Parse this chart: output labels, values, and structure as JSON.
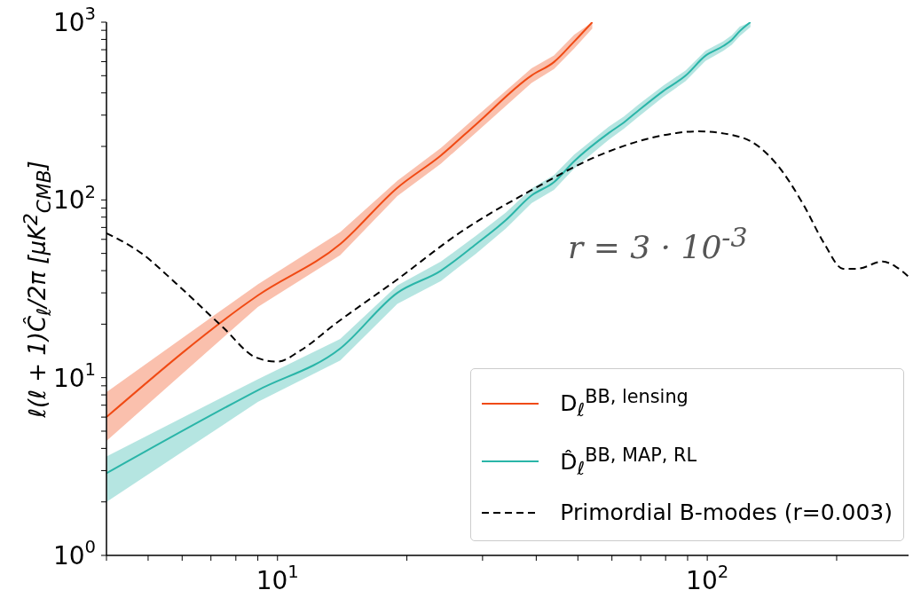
{
  "chart_data": {
    "type": "line",
    "log": "xy",
    "ylabel": "ℓ(ℓ + 1)Ĉ$_{ℓ}$/2π [μK$^{2}$$_{CMB}$]",
    "xlim": [
      4,
      294
    ],
    "xticks": [
      {
        "value": 4,
        "label": null
      },
      {
        "value": 5,
        "label": null
      },
      {
        "value": 6,
        "label": null
      },
      {
        "value": 7,
        "label": null
      },
      {
        "value": 8,
        "label": null
      },
      {
        "value": 9,
        "label": null
      },
      {
        "value": 10,
        "label": "10$^{1}$"
      },
      {
        "value": 20,
        "label": null
      },
      {
        "value": 30,
        "label": null
      },
      {
        "value": 40,
        "label": null
      },
      {
        "value": 50,
        "label": null
      },
      {
        "value": 60,
        "label": null
      },
      {
        "value": 70,
        "label": null
      },
      {
        "value": 80,
        "label": null
      },
      {
        "value": 90,
        "label": null
      },
      {
        "value": 100,
        "label": "10$^{2}$"
      },
      {
        "value": 200,
        "label": null
      }
    ],
    "ylim": [
      1,
      1000
    ],
    "yticks": [
      {
        "value": 1,
        "label": "10$^{0}$"
      },
      {
        "value": 2,
        "label": null
      },
      {
        "value": 3,
        "label": null
      },
      {
        "value": 4,
        "label": null
      },
      {
        "value": 5,
        "label": null
      },
      {
        "value": 6,
        "label": null
      },
      {
        "value": 7,
        "label": null
      },
      {
        "value": 8,
        "label": null
      },
      {
        "value": 9,
        "label": null
      },
      {
        "value": 10,
        "label": "10$^{1}$"
      },
      {
        "value": 20,
        "label": null
      },
      {
        "value": 30,
        "label": null
      },
      {
        "value": 40,
        "label": null
      },
      {
        "value": 50,
        "label": null
      },
      {
        "value": 60,
        "label": null
      },
      {
        "value": 70,
        "label": null
      },
      {
        "value": 80,
        "label": null
      },
      {
        "value": 90,
        "label": null
      },
      {
        "value": 100,
        "label": "10$^{2}$"
      },
      {
        "value": 200,
        "label": null
      },
      {
        "value": 300,
        "label": null
      },
      {
        "value": 400,
        "label": null
      },
      {
        "value": 500,
        "label": null
      },
      {
        "value": 600,
        "label": null
      },
      {
        "value": 700,
        "label": null
      },
      {
        "value": 800,
        "label": null
      },
      {
        "value": 900,
        "label": null
      },
      {
        "value": 1000,
        "label": "10$^{3}$"
      }
    ],
    "legend": "bottom right",
    "annotations": [
      "r = 3 · 10$^{-3}$"
    ],
    "series": [
      {
        "name": "D$_{ℓ}$$^{BB, lensing}$",
        "color": "#f04a14",
        "x": [
          4,
          9,
          14,
          19,
          24,
          29,
          39,
          44,
          49,
          54
        ],
        "values": [
          6.0,
          29,
          56.5,
          117,
          178,
          267,
          501,
          597,
          778,
          1000
        ],
        "lower": [
          4.4,
          25,
          49,
          105,
          160,
          240,
          455,
          545,
          710,
          920
        ],
        "upper": [
          8.3,
          33.5,
          66,
          128,
          196,
          294,
          550,
          650,
          850,
          1000
        ]
      },
      {
        "name": "D̂$_{ℓ}$$^{BB, MAP, RL}$",
        "color": "#2ab5a8",
        "x": [
          4,
          9,
          14,
          19,
          24,
          29,
          34,
          39,
          44,
          49,
          59,
          64,
          69,
          79,
          89,
          99,
          109,
          114,
          119,
          126
        ],
        "values": [
          2.9,
          8.5,
          14.6,
          30,
          40,
          56.5,
          77,
          106,
          126,
          165,
          238,
          273,
          317,
          410,
          500,
          647,
          735,
          795,
          890,
          1000
        ],
        "lower": [
          2.0,
          7.3,
          12.5,
          26,
          35,
          50,
          69,
          96,
          114,
          150,
          218,
          252,
          292,
          380,
          465,
          605,
          690,
          745,
          835,
          940
        ],
        "upper": [
          3.6,
          9.8,
          16.5,
          33,
          45,
          63,
          85,
          116,
          138,
          180,
          258,
          295,
          342,
          440,
          535,
          690,
          780,
          845,
          945,
          1000
        ]
      },
      {
        "name": "Primordial B-modes (r=0.003)",
        "color": "#000000",
        "line_style": "dashed",
        "x": [
          4,
          4.83,
          5.8,
          7.5,
          8.9,
          10,
          11.3,
          13.6,
          19,
          26.6,
          38.6,
          56,
          75,
          95,
          120,
          145,
          167,
          187,
          207,
          223,
          256,
          275,
          294
        ],
        "values": [
          65,
          50,
          34,
          19,
          13,
          12.3,
          14.2,
          20,
          35.7,
          65.6,
          112,
          178,
          225,
          243,
          225,
          159,
          95,
          57,
          41,
          41,
          45,
          42,
          37
        ]
      }
    ]
  }
}
